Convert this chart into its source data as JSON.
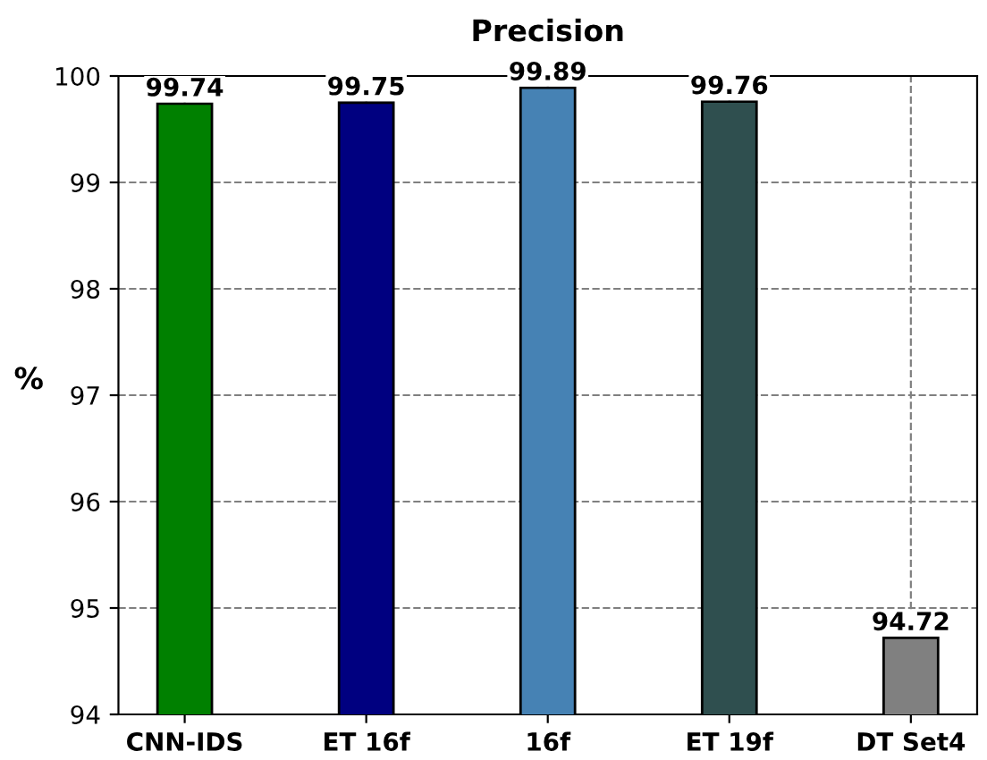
{
  "chart_data": {
    "type": "bar",
    "title": "Precision",
    "ylabel": "%",
    "categories": [
      "CNN-IDS",
      "ET 16f",
      "16f",
      "ET 19f",
      "DT Set4"
    ],
    "values": [
      99.74,
      99.75,
      99.89,
      99.76,
      94.72
    ],
    "colors": [
      "#008000",
      "#000080",
      "#4682b4",
      "#2f4f4f",
      "#808080"
    ],
    "ylim": [
      94,
      100
    ],
    "yticks": [
      94,
      95,
      96,
      97,
      98,
      99,
      100
    ],
    "grid": true,
    "data_labels": true
  }
}
